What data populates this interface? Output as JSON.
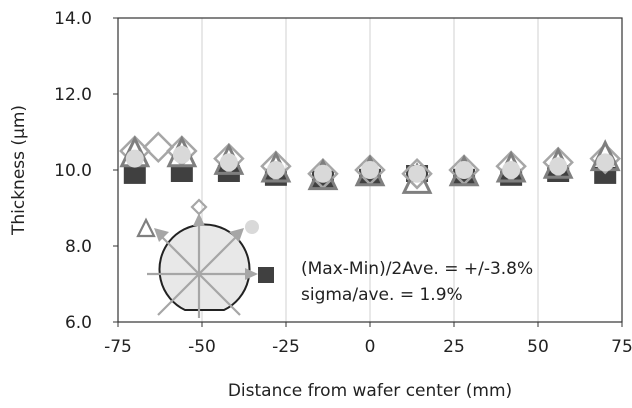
{
  "chart_data": {
    "type": "scatter",
    "title": "",
    "xlabel": "Distance from wafer center (mm)",
    "ylabel": "Thickness (µm)",
    "xlim": [
      -75,
      75
    ],
    "ylim": [
      6.0,
      14.0
    ],
    "x_ticks": [
      -75,
      -50,
      -25,
      0,
      25,
      50,
      75
    ],
    "x_tick_labels": [
      "-75",
      "-50",
      "-25",
      "0",
      "25",
      "50",
      "75"
    ],
    "y_ticks": [
      6,
      8,
      10,
      12,
      14
    ],
    "y_tick_labels": [
      "6.0",
      "8.0",
      "10.0",
      "12.0",
      "14.0"
    ],
    "grid": "vertical",
    "series": [
      {
        "marker": "diamond",
        "color": "#a6a6a6",
        "x": [
          -70,
          -63,
          -56,
          -42,
          -28,
          -14,
          0,
          14,
          28,
          42,
          56,
          70
        ],
        "y": [
          10.5,
          10.6,
          10.5,
          10.3,
          10.1,
          9.9,
          10.0,
          9.9,
          10.0,
          10.1,
          10.2,
          10.3
        ]
      },
      {
        "marker": "triangle-up",
        "color": "#7f7f7f",
        "x": [
          -70,
          -56,
          -42,
          -28,
          -14,
          0,
          14,
          28,
          42,
          56,
          70
        ],
        "y": [
          10.4,
          10.4,
          10.2,
          10.0,
          9.8,
          9.9,
          9.7,
          9.9,
          10.0,
          10.1,
          10.3
        ]
      },
      {
        "marker": "square",
        "color": "#404040",
        "x": [
          -70,
          -56,
          -42,
          -28,
          -14,
          0,
          14,
          28,
          42,
          56,
          70
        ],
        "y": [
          9.95,
          10.0,
          10.0,
          9.9,
          9.85,
          9.9,
          10.0,
          9.9,
          9.9,
          10.0,
          9.95
        ]
      },
      {
        "marker": "circle",
        "color": "#d9d9d9",
        "x": [
          -70,
          -56,
          -42,
          -28,
          -14,
          0,
          14,
          28,
          42,
          56,
          70
        ],
        "y": [
          10.3,
          10.4,
          10.2,
          10.0,
          9.9,
          10.0,
          9.9,
          10.0,
          10.0,
          10.1,
          10.2
        ]
      }
    ],
    "annotations": [
      "(Max-Min)/2Ave. = +/-3.8%",
      "sigma/ave. = 1.9%"
    ],
    "inset": {
      "description": "wafer map with marker legend",
      "markers": [
        "triangle-up",
        "diamond",
        "circle",
        "square"
      ]
    }
  }
}
